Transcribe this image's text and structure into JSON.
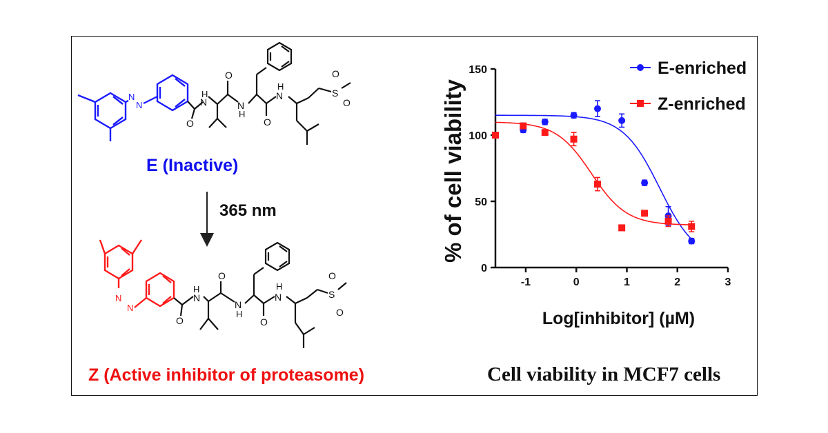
{
  "scheme": {
    "e_label": "E (Inactive)",
    "wavelength_label": "365 nm",
    "z_label": "Z (Active inhibitor of proteasome)",
    "atom_n": "N",
    "atom_nh": "H",
    "atom_o": "O",
    "atom_s": "S"
  },
  "caption": "Cell viability in MCF7 cells",
  "colors": {
    "e_series": "#1a1aff",
    "z_series": "#ff1a1a",
    "e_label": "#1010ee",
    "z_label": "#ee1111",
    "axis": "#111111"
  },
  "chart_data": {
    "type": "scatter",
    "title": "",
    "xlabel": "Log[inhibitor] (µM)",
    "ylabel": "% of cell viability",
    "xlim": [
      -1.6,
      3
    ],
    "ylim": [
      0,
      150
    ],
    "x_ticks": [
      -1,
      0,
      1,
      2,
      3
    ],
    "x_tick_labels": [
      "-1",
      "0",
      "1",
      "2",
      "3"
    ],
    "y_ticks": [
      0,
      50,
      100,
      150
    ],
    "y_tick_labels": [
      "0",
      "50",
      "100",
      "150"
    ],
    "legend_position": "top-right",
    "grid": false,
    "series": [
      {
        "name": "E-enriched",
        "marker": "circle",
        "x": [
          -1.6,
          -1.05,
          -0.62,
          -0.05,
          0.42,
          0.9,
          1.35,
          1.82,
          2.28
        ],
        "y": [
          100,
          104,
          110,
          115,
          120,
          111,
          64,
          39,
          20
        ],
        "err": [
          2,
          2,
          2,
          2,
          6,
          5,
          2,
          7,
          2
        ],
        "fit": {
          "top": 115,
          "bottom": 5,
          "logIC50": 1.65,
          "hill": 1.2
        }
      },
      {
        "name": "Z-enriched",
        "marker": "square",
        "x": [
          -1.6,
          -1.05,
          -0.62,
          -0.05,
          0.42,
          0.9,
          1.35,
          1.82,
          2.28
        ],
        "y": [
          100,
          107,
          102,
          97,
          63,
          30,
          41,
          35,
          31
        ],
        "err": [
          2,
          2,
          2,
          5,
          5,
          2,
          2,
          4,
          4
        ],
        "fit": {
          "top": 110,
          "bottom": 32,
          "logIC50": 0.3,
          "hill": 1.25
        }
      }
    ]
  }
}
